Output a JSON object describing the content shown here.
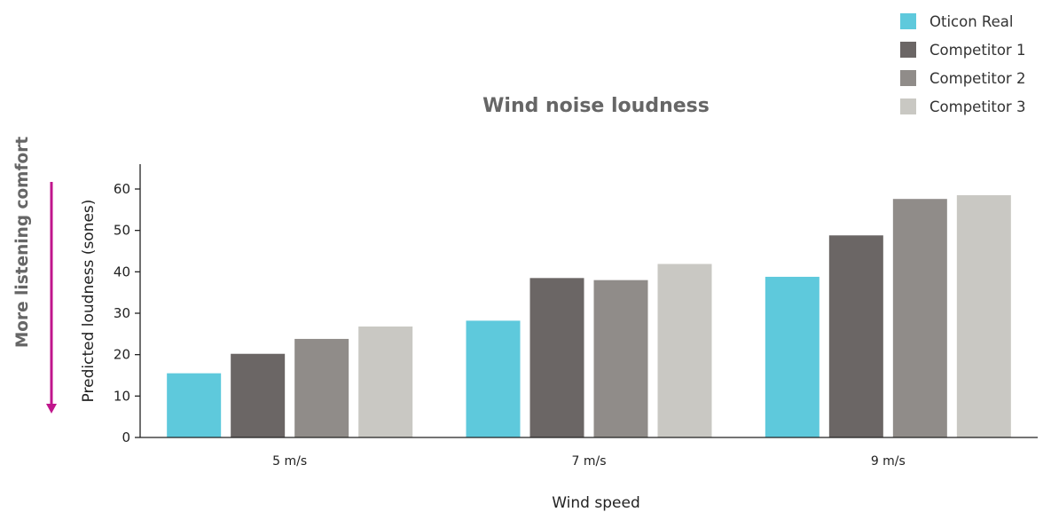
{
  "chart_data": {
    "type": "bar",
    "title": "Wind noise loudness",
    "xlabel": "Wind speed",
    "ylabel": "Predicted loudness (sones)",
    "side_annotation": "More listening comfort",
    "categories": [
      "5 m/s",
      "7 m/s",
      "9 m/s"
    ],
    "series": [
      {
        "name": "Oticon Real",
        "color": "#5ec9dc",
        "values": [
          15.5,
          28.2,
          38.8
        ]
      },
      {
        "name": "Competitor 1",
        "color": "#6b6665",
        "values": [
          20.2,
          38.5,
          48.8
        ]
      },
      {
        "name": "Competitor 2",
        "color": "#908c89",
        "values": [
          23.8,
          38.0,
          57.6
        ]
      },
      {
        "name": "Competitor 3",
        "color": "#c9c8c3",
        "values": [
          26.8,
          41.9,
          58.5
        ]
      }
    ],
    "ylim": [
      0,
      66
    ],
    "yticks": [
      0,
      10,
      20,
      30,
      40,
      50,
      60
    ],
    "grid": false,
    "legend_position": "top-right",
    "annotation_color": "#c0168c"
  }
}
